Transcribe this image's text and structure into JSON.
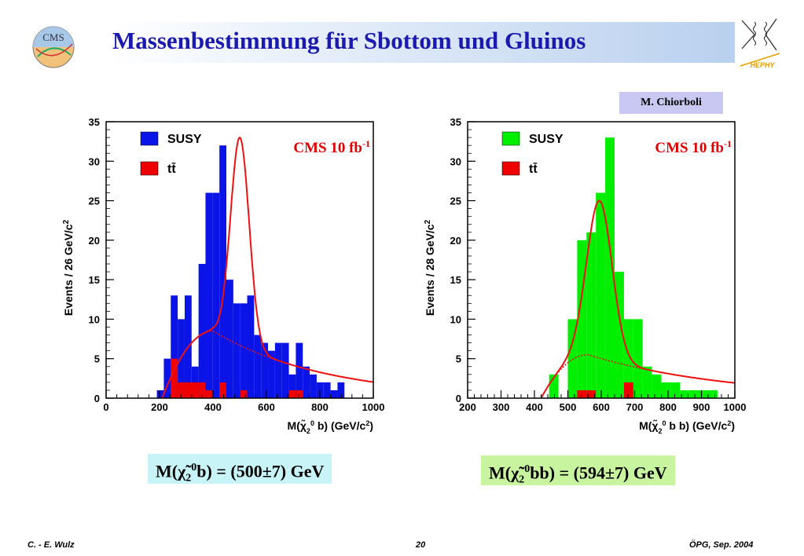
{
  "slide": {
    "title": "Massenbestimmung für Sbottom und Gluinos",
    "author_tag": "M. Chiorboli",
    "footer_left": "C. - E. Wulz",
    "footer_center": "20",
    "footer_right": "ÖPG, Sep. 2004",
    "logo_left_text": "CMS",
    "logo_right_text": "HEPHY"
  },
  "results": {
    "left": {
      "prefix": "M(",
      "chi": "χ̃",
      "sub": "2",
      "sup": "0",
      "particles": "b",
      "suffix": ") = (500±7) GeV"
    },
    "right": {
      "prefix": "M(",
      "chi": "χ̃",
      "sub": "2",
      "sup": "0",
      "particles": "bb",
      "suffix": ") = (594±7) GeV"
    }
  },
  "colors": {
    "title": "#1a1ab0",
    "susy_left": "#0a14e6",
    "susy_right": "#00ee00",
    "ttbar": "#ee0000",
    "fit": "#ee1111",
    "cms_label": "#e00000"
  },
  "chart_data": [
    {
      "type": "bar",
      "title": "",
      "annotation": "CMS 10 fb",
      "annotation_sup": "-1",
      "xlabel_prefix": "M(",
      "xlabel_chi": "χ̃",
      "xlabel_sub": "2",
      "xlabel_sup": "0",
      "xlabel_suffix": " b)  (GeV/c",
      "xlabel_tail": ")",
      "xlabel_sup2": "2",
      "ylabel": "Events / 26 GeV/c",
      "ylabel_sup": "2",
      "xlim": [
        0,
        1000
      ],
      "ylim": [
        0,
        35
      ],
      "xticks": [
        0,
        200,
        400,
        600,
        800,
        1000
      ],
      "yticks": [
        0,
        5,
        10,
        15,
        20,
        25,
        30,
        35
      ],
      "bin_width": 26,
      "bin_start": 190,
      "legend": [
        {
          "name": "SUSY",
          "color": "#0a14e6"
        },
        {
          "name": "tt̄",
          "color": "#ee0000"
        }
      ],
      "legend_position": "top-left",
      "series": [
        {
          "name": "SUSY",
          "values": [
            1,
            5,
            13,
            10,
            13,
            4,
            17,
            26,
            26,
            32,
            15,
            12,
            12,
            13,
            8,
            7,
            6,
            7,
            7,
            3,
            7,
            4,
            3,
            2,
            2,
            1,
            2
          ]
        },
        {
          "name": "tt̄",
          "values": [
            0,
            0,
            5,
            2,
            2,
            2,
            2,
            1,
            0,
            2,
            0,
            0,
            1,
            0,
            0,
            0,
            0,
            0,
            0,
            1,
            1,
            0,
            0,
            0,
            0,
            0,
            0
          ]
        }
      ],
      "fit": {
        "peak_x": 500,
        "peak_y": 33,
        "sigma": 35,
        "bg_peak_x": 400,
        "bg_peak_y": 8.5
      },
      "bg_fit": {
        "start_x": 210,
        "peak_x": 400,
        "peak_y": 8.5
      }
    },
    {
      "type": "bar",
      "title": "",
      "annotation": "CMS 10 fb",
      "annotation_sup": "-1",
      "xlabel_prefix": "M(",
      "xlabel_chi": "χ̃",
      "xlabel_sub": "2",
      "xlabel_sup": "0",
      "xlabel_suffix": " b b)  (GeV/c",
      "xlabel_tail": ")",
      "xlabel_sup2": "2",
      "ylabel": "Events / 28 GeV/c",
      "ylabel_sup": "2",
      "xlim": [
        200,
        1000
      ],
      "ylim": [
        0,
        35
      ],
      "xticks": [
        200,
        300,
        400,
        500,
        600,
        700,
        800,
        900,
        1000
      ],
      "yticks": [
        0,
        5,
        10,
        15,
        20,
        25,
        30,
        35
      ],
      "bin_width": 28,
      "bin_start": 444,
      "legend": [
        {
          "name": "SUSY",
          "color": "#00ee00"
        },
        {
          "name": "tt̄",
          "color": "#ee0000"
        }
      ],
      "legend_position": "top-left",
      "series": [
        {
          "name": "SUSY",
          "values": [
            3,
            0,
            10,
            20,
            21,
            26,
            33,
            16,
            10,
            10,
            4,
            3,
            2,
            2,
            1,
            1,
            1,
            1
          ]
        },
        {
          "name": "tt̄",
          "values": [
            0,
            0,
            0,
            1,
            1,
            0,
            0,
            0,
            2,
            0,
            0,
            0,
            0,
            0,
            0,
            0,
            0,
            0
          ]
        }
      ],
      "fit": {
        "peak_x": 594,
        "peak_y": 25,
        "sigma": 38
      },
      "bg_fit": {
        "start_x": 420,
        "peak_x": 560,
        "peak_y": 5.5
      }
    }
  ]
}
